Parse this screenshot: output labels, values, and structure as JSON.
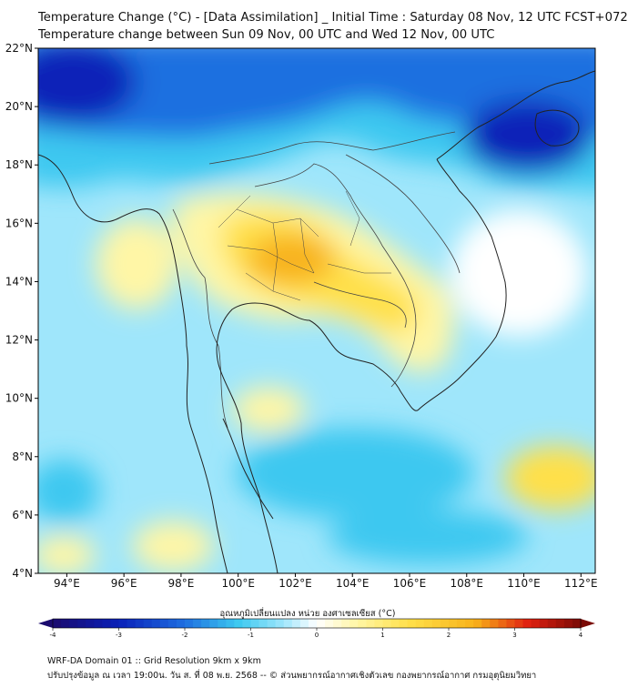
{
  "header": {
    "title_line1": "Temperature Change (°C) - [Data Assimilation] _ Initial Time : Saturday 08 Nov, 12 UTC FCST+072",
    "title_line2": "Temperature change between Sun 09 Nov, 00 UTC and Wed 12 Nov, 00 UTC"
  },
  "map": {
    "lat_labels": [
      "22°N",
      "20°N",
      "18°N",
      "16°N",
      "14°N",
      "12°N",
      "10°N",
      "8°N",
      "6°N",
      "4°N"
    ],
    "lon_labels": [
      "94°E",
      "96°E",
      "98°E",
      "100°E",
      "102°E",
      "104°E",
      "106°E",
      "108°E",
      "110°E",
      "112°E"
    ],
    "lat_range": [
      4,
      22
    ],
    "lon_range": [
      93,
      112.5
    ]
  },
  "colorbar": {
    "label": "อุณหภูมิเปลี่ยนแปลง หน่วย องศาเซลเซียส (°C)",
    "ticks": [
      "-4",
      "-3",
      "-2",
      "-1",
      "0",
      "1",
      "2",
      "3",
      "4"
    ],
    "range": [
      -4,
      4
    ]
  },
  "footer": {
    "line1": "WRF-DA Domain 01 :: Grid Resolution 9km x 9km",
    "line2": "ปรับปรุงข้อมูล ณ เวลา 19:00น. วัน ส. ที่ 08 พ.ย. 2568 -- © ส่วนพยากรณ์อากาศเชิงตัวเลข กองพยากรณ์อากาศ กรมอุตุนิยมวิทยา"
  },
  "colors": {
    "deep_blue": "#0a20b8",
    "blue": "#1f6fe0",
    "cyan": "#3cc8f0",
    "light_cyan": "#9fe6fb",
    "white": "#ffffff",
    "light_yellow": "#fff6a6",
    "yellow": "#ffe04a",
    "orange": "#f8b21a",
    "red": "#e02010",
    "dark_red": "#7a0a05",
    "coast": "#222222",
    "border": "#444444"
  }
}
